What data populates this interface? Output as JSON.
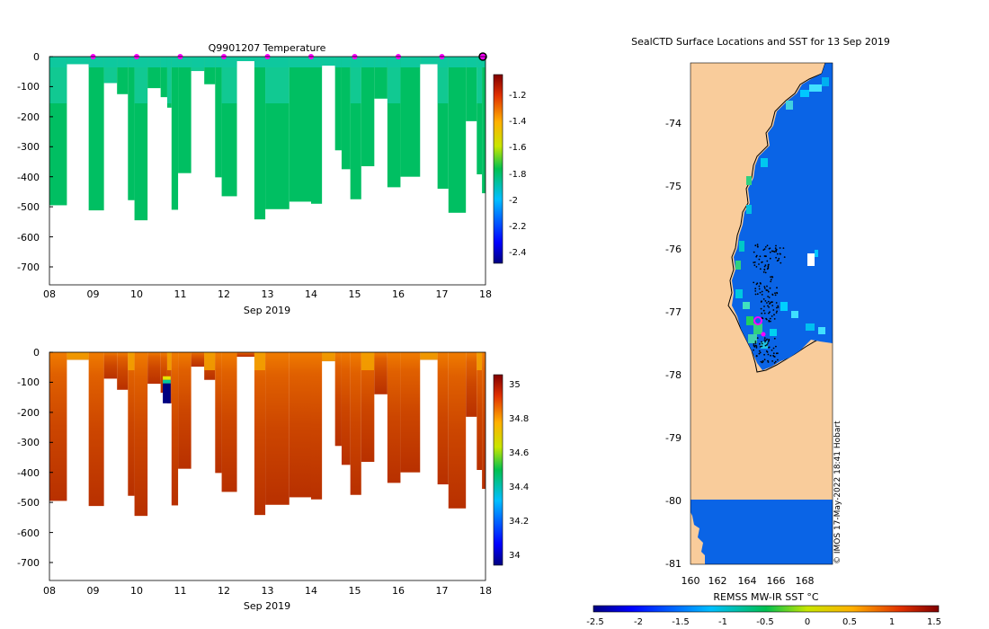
{
  "panels": {
    "temperature": {
      "title": "Q9901207  Temperature",
      "xlabel": "Sep 2019",
      "x_ticks": [
        "08",
        "09",
        "10",
        "11",
        "12",
        "13",
        "14",
        "15",
        "16",
        "17",
        "18"
      ],
      "y_ticks": [
        "0",
        "-100",
        "-200",
        "-300",
        "-400",
        "-500",
        "-600",
        "-700"
      ],
      "colorbar_ticks": [
        "-1.2",
        "-1.4",
        "-1.6",
        "-1.8",
        "-2",
        "-2.2",
        "-2.4"
      ]
    },
    "salinity": {
      "xlabel": "Sep 2019",
      "x_ticks": [
        "08",
        "09",
        "10",
        "11",
        "12",
        "13",
        "14",
        "15",
        "16",
        "17",
        "18"
      ],
      "y_ticks": [
        "0",
        "-100",
        "-200",
        "-300",
        "-400",
        "-500",
        "-600",
        "-700"
      ],
      "colorbar_ticks": [
        "35",
        "34.8",
        "34.6",
        "34.4",
        "34.2",
        "34"
      ]
    },
    "map": {
      "title": "SealCTD Surface Locations and SST for 13 Sep 2019",
      "lat_ticks": [
        "-74",
        "-75",
        "-76",
        "-77",
        "-78",
        "-79",
        "-80",
        "-81"
      ],
      "lon_ticks": [
        "160",
        "162",
        "164",
        "166",
        "168"
      ],
      "colorbar_label": "REMSS MW-IR SST °C",
      "colorbar_ticks": [
        "-2.5",
        "-2",
        "-1.5",
        "-1",
        "-0.5",
        "0",
        "0.5",
        "1",
        "1.5"
      ],
      "credit": "© IMOS 17-May-2022 18:41 Hobart"
    }
  },
  "colors": {
    "temp_profile": "#00bf62",
    "temp_surface": "#10c9a5",
    "temp_anomaly": "#1fd2ba",
    "marker": "#ff00ff",
    "land": "#f9cc9b",
    "ocean_sst": "#0a64e6"
  },
  "chart_data": [
    {
      "type": "heatmap",
      "name": "profile-temperature",
      "title": "Q9901207  Temperature",
      "xlabel": "Sep 2019",
      "ylabel": "",
      "xlim": [
        8,
        18
      ],
      "ylim": [
        -760,
        0
      ],
      "colorbar_range": [
        -2.5,
        -1.1
      ],
      "profiles": [
        {
          "start": 8.0,
          "end": 8.4,
          "max_depth": 495
        },
        {
          "start": 8.4,
          "end": 8.9,
          "max_depth": 25
        },
        {
          "start": 8.9,
          "end": 9.25,
          "max_depth": 512
        },
        {
          "start": 9.25,
          "end": 9.55,
          "max_depth": 88
        },
        {
          "start": 9.55,
          "end": 9.8,
          "max_depth": 125
        },
        {
          "start": 9.8,
          "end": 9.95,
          "max_depth": 478
        },
        {
          "start": 9.95,
          "end": 10.25,
          "max_depth": 545
        },
        {
          "start": 10.25,
          "end": 10.55,
          "max_depth": 105
        },
        {
          "start": 10.55,
          "end": 10.7,
          "max_depth": 135
        },
        {
          "start": 10.7,
          "end": 10.8,
          "max_depth": 170
        },
        {
          "start": 10.8,
          "end": 10.95,
          "max_depth": 510
        },
        {
          "start": 10.95,
          "end": 11.25,
          "max_depth": 388
        },
        {
          "start": 11.25,
          "end": 11.55,
          "max_depth": 48
        },
        {
          "start": 11.55,
          "end": 11.8,
          "max_depth": 92
        },
        {
          "start": 11.8,
          "end": 11.95,
          "max_depth": 402
        },
        {
          "start": 11.95,
          "end": 12.3,
          "max_depth": 465
        },
        {
          "start": 12.3,
          "end": 12.7,
          "max_depth": 15
        },
        {
          "start": 12.7,
          "end": 12.95,
          "max_depth": 542
        },
        {
          "start": 12.95,
          "end": 13.5,
          "max_depth": 508
        },
        {
          "start": 13.5,
          "end": 14.0,
          "max_depth": 483
        },
        {
          "start": 14.0,
          "end": 14.25,
          "max_depth": 490
        },
        {
          "start": 14.25,
          "end": 14.55,
          "max_depth": 30
        },
        {
          "start": 14.55,
          "end": 14.7,
          "max_depth": 312
        },
        {
          "start": 14.7,
          "end": 14.9,
          "max_depth": 375
        },
        {
          "start": 14.9,
          "end": 15.15,
          "max_depth": 475
        },
        {
          "start": 15.15,
          "end": 15.45,
          "max_depth": 365
        },
        {
          "start": 15.45,
          "end": 15.75,
          "max_depth": 140
        },
        {
          "start": 15.75,
          "end": 16.05,
          "max_depth": 435
        },
        {
          "start": 16.05,
          "end": 16.5,
          "max_depth": 400
        },
        {
          "start": 16.5,
          "end": 16.9,
          "max_depth": 25
        },
        {
          "start": 16.9,
          "end": 17.15,
          "max_depth": 440
        },
        {
          "start": 17.15,
          "end": 17.55,
          "max_depth": 520
        },
        {
          "start": 17.55,
          "end": 17.8,
          "max_depth": 215
        },
        {
          "start": 17.8,
          "end": 17.92,
          "max_depth": 392
        },
        {
          "start": 17.92,
          "end": 18.05,
          "max_depth": 455
        }
      ],
      "surface_markers_x": [
        9,
        10,
        11,
        12,
        13,
        14,
        15,
        16,
        17
      ]
    },
    {
      "type": "heatmap",
      "name": "profile-salinity",
      "title": "",
      "xlabel": "Sep 2019",
      "ylabel": "",
      "xlim": [
        8,
        18
      ],
      "ylim": [
        -760,
        0
      ],
      "colorbar_range": [
        33.9,
        35.05
      ],
      "profiles": [
        {
          "start": 8.0,
          "end": 8.4,
          "max_depth": 495
        },
        {
          "start": 8.4,
          "end": 8.9,
          "max_depth": 25
        },
        {
          "start": 8.9,
          "end": 9.25,
          "max_depth": 512
        },
        {
          "start": 9.25,
          "end": 9.55,
          "max_depth": 88
        },
        {
          "start": 9.55,
          "end": 9.8,
          "max_depth": 125
        },
        {
          "start": 9.8,
          "end": 9.95,
          "max_depth": 478
        },
        {
          "start": 9.95,
          "end": 10.25,
          "max_depth": 545
        },
        {
          "start": 10.25,
          "end": 10.55,
          "max_depth": 105
        },
        {
          "start": 10.55,
          "end": 10.7,
          "max_depth": 135
        },
        {
          "start": 10.7,
          "end": 10.8,
          "max_depth": 170
        },
        {
          "start": 10.8,
          "end": 10.95,
          "max_depth": 510
        },
        {
          "start": 10.95,
          "end": 11.25,
          "max_depth": 388
        },
        {
          "start": 11.25,
          "end": 11.55,
          "max_depth": 48
        },
        {
          "start": 11.55,
          "end": 11.8,
          "max_depth": 92
        },
        {
          "start": 11.8,
          "end": 11.95,
          "max_depth": 402
        },
        {
          "start": 11.95,
          "end": 12.3,
          "max_depth": 465
        },
        {
          "start": 12.3,
          "end": 12.7,
          "max_depth": 15
        },
        {
          "start": 12.7,
          "end": 12.95,
          "max_depth": 542
        },
        {
          "start": 12.95,
          "end": 13.5,
          "max_depth": 508
        },
        {
          "start": 13.5,
          "end": 14.0,
          "max_depth": 483
        },
        {
          "start": 14.0,
          "end": 14.25,
          "max_depth": 490
        },
        {
          "start": 14.25,
          "end": 14.55,
          "max_depth": 30
        },
        {
          "start": 14.55,
          "end": 14.7,
          "max_depth": 312
        },
        {
          "start": 14.7,
          "end": 14.9,
          "max_depth": 375
        },
        {
          "start": 14.9,
          "end": 15.15,
          "max_depth": 475
        },
        {
          "start": 15.15,
          "end": 15.45,
          "max_depth": 365
        },
        {
          "start": 15.45,
          "end": 15.75,
          "max_depth": 140
        },
        {
          "start": 15.75,
          "end": 16.05,
          "max_depth": 435
        },
        {
          "start": 16.05,
          "end": 16.5,
          "max_depth": 400
        },
        {
          "start": 16.5,
          "end": 16.9,
          "max_depth": 25
        },
        {
          "start": 16.9,
          "end": 17.15,
          "max_depth": 440
        },
        {
          "start": 17.15,
          "end": 17.55,
          "max_depth": 520
        },
        {
          "start": 17.55,
          "end": 17.8,
          "max_depth": 215
        },
        {
          "start": 17.8,
          "end": 17.92,
          "max_depth": 392
        },
        {
          "start": 17.92,
          "end": 18.05,
          "max_depth": 455
        }
      ],
      "anomaly": {
        "x": [
          10.6,
          10.78
        ],
        "depth": [
          80,
          170
        ],
        "values_top_to_bottom": [
          34.5,
          34.25,
          34.0
        ]
      }
    },
    {
      "type": "scatter",
      "name": "sst-map",
      "title": "SealCTD Surface Locations and SST for 13 Sep 2019",
      "xlim": [
        160,
        170
      ],
      "ylim": [
        -81.1,
        -73
      ],
      "xlabel": "",
      "ylabel": "",
      "colorbar_range": [
        -2.5,
        1.5
      ],
      "colorbar_label": "REMSS MW-IR SST °C",
      "current_location": {
        "lon": 164.7,
        "lat": -77.15
      }
    }
  ]
}
